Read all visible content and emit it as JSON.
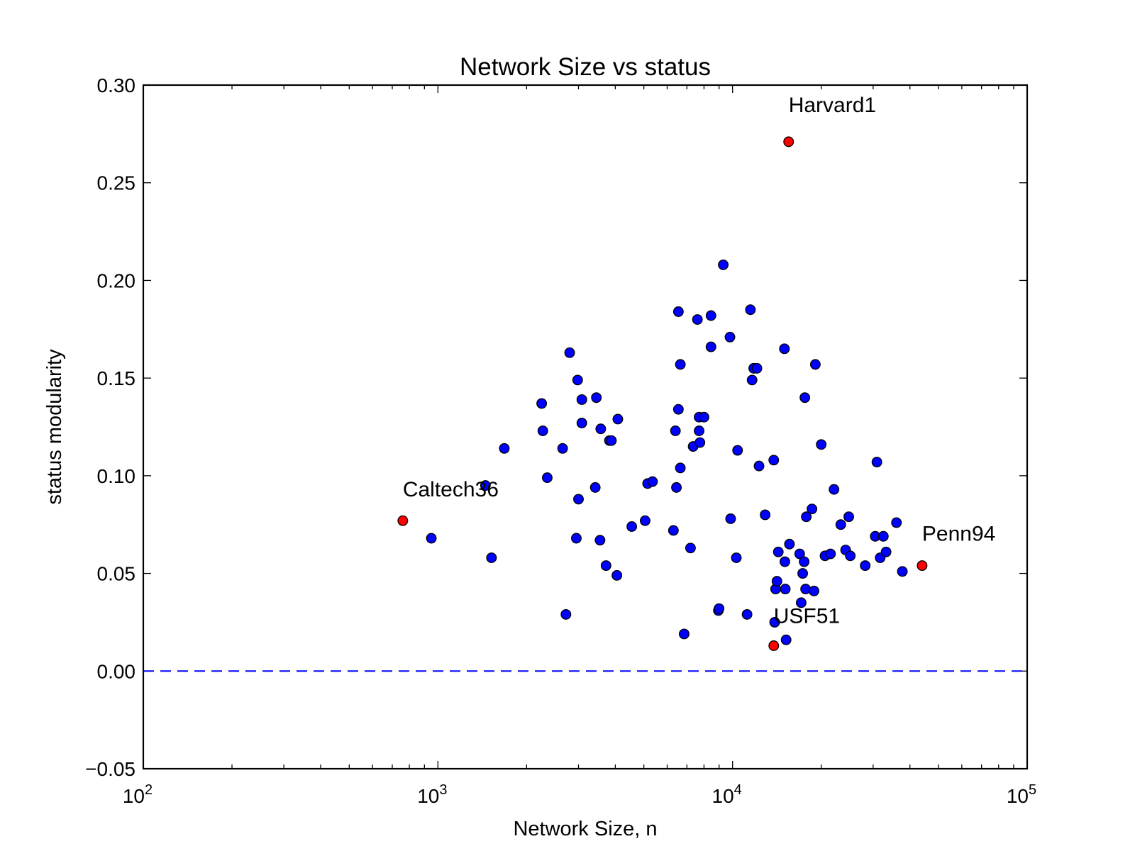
{
  "chart_data": {
    "type": "scatter",
    "title": "Network Size vs status",
    "xlabel": "Network Size, n",
    "ylabel": "status modularity",
    "xscale": "log",
    "xlim": [
      100,
      100000
    ],
    "ylim": [
      -0.05,
      0.3
    ],
    "x_ticks": [
      {
        "value": 100,
        "base": "10",
        "exp": "2"
      },
      {
        "value": 1000,
        "base": "10",
        "exp": "3"
      },
      {
        "value": 10000,
        "base": "10",
        "exp": "4"
      },
      {
        "value": 100000,
        "base": "10",
        "exp": "5"
      }
    ],
    "y_ticks": [
      {
        "value": -0.05,
        "label": "−0.05"
      },
      {
        "value": 0.0,
        "label": "0.00"
      },
      {
        "value": 0.05,
        "label": "0.05"
      },
      {
        "value": 0.1,
        "label": "0.10"
      },
      {
        "value": 0.15,
        "label": "0.15"
      },
      {
        "value": 0.2,
        "label": "0.20"
      },
      {
        "value": 0.25,
        "label": "0.25"
      },
      {
        "value": 0.3,
        "label": "0.30"
      }
    ],
    "reference_line": {
      "y": 0.0,
      "style": "dashed",
      "color": "#0000ff"
    },
    "grid": false,
    "colors": {
      "points": "#0000ff",
      "highlight": "#ff0000"
    },
    "series": [
      {
        "points": [
          [
            950,
            0.068
          ],
          [
            1450,
            0.095
          ],
          [
            1520,
            0.058
          ],
          [
            1680,
            0.114
          ],
          [
            2250,
            0.137
          ],
          [
            2270,
            0.123
          ],
          [
            2350,
            0.099
          ],
          [
            2650,
            0.114
          ],
          [
            2720,
            0.029
          ],
          [
            2800,
            0.163
          ],
          [
            2950,
            0.068
          ],
          [
            2980,
            0.149
          ],
          [
            3000,
            0.088
          ],
          [
            3080,
            0.127
          ],
          [
            3080,
            0.139
          ],
          [
            3450,
            0.14
          ],
          [
            3420,
            0.094
          ],
          [
            3550,
            0.067
          ],
          [
            3570,
            0.124
          ],
          [
            3720,
            0.054
          ],
          [
            3820,
            0.118
          ],
          [
            3880,
            0.118
          ],
          [
            4050,
            0.049
          ],
          [
            4080,
            0.129
          ],
          [
            4550,
            0.074
          ],
          [
            5050,
            0.077
          ],
          [
            5150,
            0.096
          ],
          [
            5350,
            0.097
          ],
          [
            6300,
            0.072
          ],
          [
            6400,
            0.123
          ],
          [
            6450,
            0.094
          ],
          [
            6550,
            0.134
          ],
          [
            6550,
            0.184
          ],
          [
            6650,
            0.104
          ],
          [
            6650,
            0.157
          ],
          [
            6850,
            0.019
          ],
          [
            7200,
            0.063
          ],
          [
            7350,
            0.115
          ],
          [
            7600,
            0.18
          ],
          [
            7700,
            0.123
          ],
          [
            7700,
            0.13
          ],
          [
            7750,
            0.117
          ],
          [
            8000,
            0.13
          ],
          [
            8450,
            0.166
          ],
          [
            8450,
            0.182
          ],
          [
            8950,
            0.031
          ],
          [
            9000,
            0.032
          ],
          [
            9300,
            0.208
          ],
          [
            9800,
            0.171
          ],
          [
            9850,
            0.078
          ],
          [
            10300,
            0.058
          ],
          [
            10400,
            0.113
          ],
          [
            11200,
            0.029
          ],
          [
            11500,
            0.185
          ],
          [
            11650,
            0.149
          ],
          [
            11800,
            0.155
          ],
          [
            12100,
            0.155
          ],
          [
            12300,
            0.105
          ],
          [
            12900,
            0.08
          ],
          [
            13800,
            0.108
          ],
          [
            13900,
            0.025
          ],
          [
            14000,
            0.042
          ],
          [
            14150,
            0.046
          ],
          [
            14300,
            0.061
          ],
          [
            15000,
            0.165
          ],
          [
            15050,
            0.056
          ],
          [
            15100,
            0.042
          ],
          [
            15200,
            0.016
          ],
          [
            15600,
            0.065
          ],
          [
            16900,
            0.06
          ],
          [
            17100,
            0.035
          ],
          [
            17300,
            0.05
          ],
          [
            17500,
            0.056
          ],
          [
            17600,
            0.14
          ],
          [
            17700,
            0.042
          ],
          [
            17800,
            0.079
          ],
          [
            18600,
            0.083
          ],
          [
            18900,
            0.041
          ],
          [
            19100,
            0.157
          ],
          [
            20000,
            0.116
          ],
          [
            20600,
            0.059
          ],
          [
            21500,
            0.06
          ],
          [
            22100,
            0.093
          ],
          [
            23300,
            0.075
          ],
          [
            24200,
            0.062
          ],
          [
            24800,
            0.079
          ],
          [
            25100,
            0.059
          ],
          [
            28200,
            0.054
          ],
          [
            30500,
            0.069
          ],
          [
            30900,
            0.107
          ],
          [
            31700,
            0.058
          ],
          [
            32500,
            0.069
          ],
          [
            33200,
            0.061
          ],
          [
            36000,
            0.076
          ],
          [
            37700,
            0.051
          ]
        ]
      },
      {
        "points": [
          [
            760,
            0.077
          ],
          [
            15500,
            0.271
          ],
          [
            13800,
            0.013
          ],
          [
            44000,
            0.054
          ]
        ]
      }
    ],
    "annotations": [
      {
        "text": "Harvard1",
        "x": 15500,
        "y": 0.271
      },
      {
        "text": "Caltech36",
        "x": 760,
        "y": 0.077
      },
      {
        "text": "Penn94",
        "x": 44000,
        "y": 0.054
      },
      {
        "text": "USF51",
        "x": 13800,
        "y": 0.013
      }
    ]
  }
}
